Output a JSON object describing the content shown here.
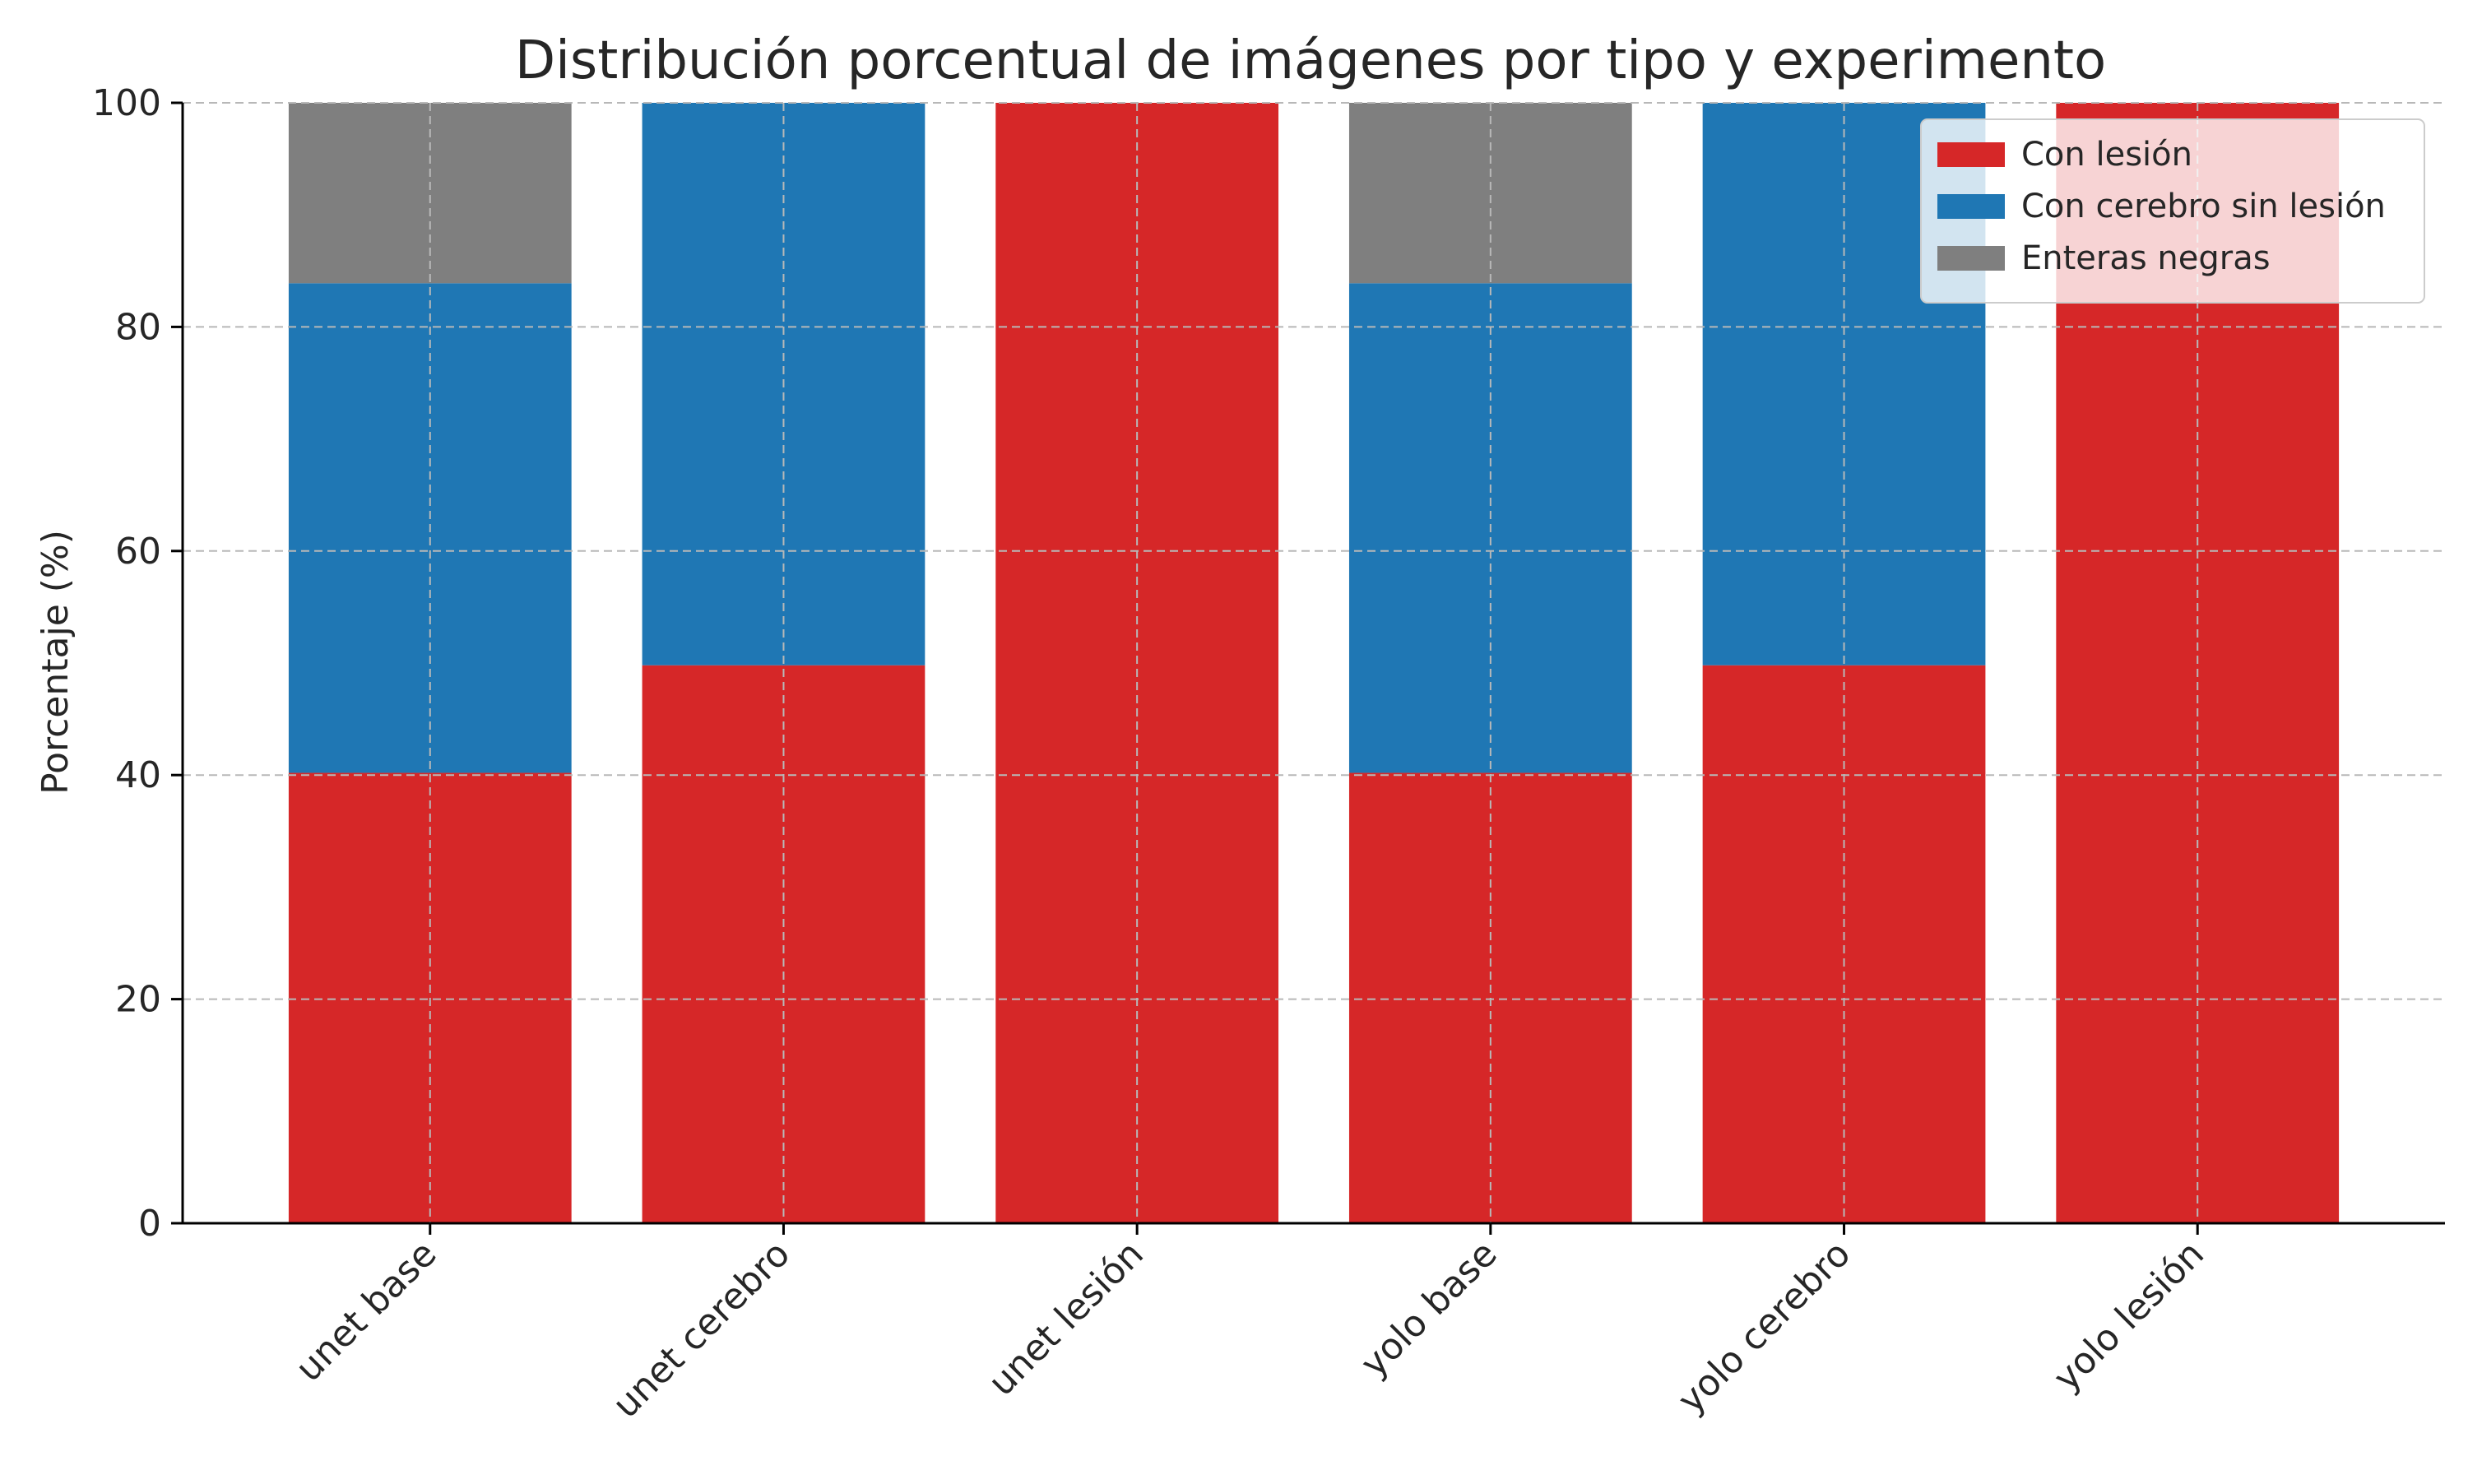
{
  "chart_data": {
    "type": "bar",
    "stacked": true,
    "title": "Distribución porcentual de imágenes por tipo y experimento",
    "xlabel": "",
    "ylabel": "Porcentaje (%)",
    "ylim": [
      0,
      100
    ],
    "yticks": [
      0,
      20,
      40,
      60,
      80,
      100
    ],
    "grid": true,
    "legend_position": "top-right",
    "categories": [
      "unet base",
      "unet cerebro",
      "unet lesión",
      "yolo base",
      "yolo cerebro",
      "yolo lesión"
    ],
    "series": [
      {
        "name": "Con lesión",
        "color": "#d62728",
        "values": [
          40.2,
          49.8,
          100,
          40.2,
          49.8,
          100
        ]
      },
      {
        "name": "Con cerebro sin lesión",
        "color": "#1f77b4",
        "values": [
          43.7,
          50.2,
          0,
          43.7,
          50.2,
          0
        ]
      },
      {
        "name": "Enteras negras",
        "color": "#7f7f7f",
        "values": [
          16.1,
          0,
          0,
          16.1,
          0,
          0
        ]
      }
    ]
  }
}
